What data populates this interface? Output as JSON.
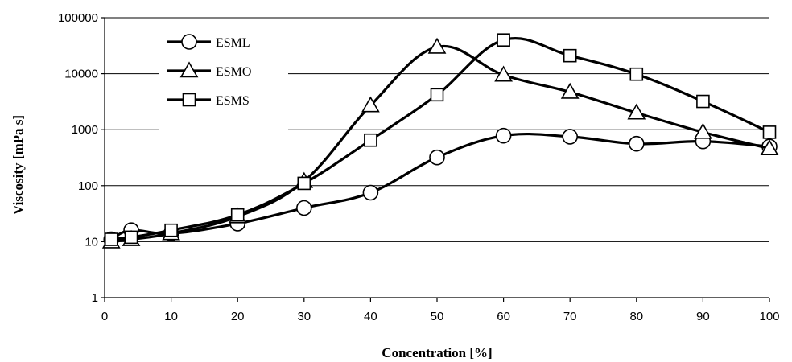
{
  "chart_data": {
    "type": "line",
    "title": "",
    "xlabel": "Concentration [%]",
    "ylabel": "Viscosity [mPa s]",
    "xlim": [
      0,
      100
    ],
    "ylim": [
      1,
      100000
    ],
    "yscale": "log",
    "x_ticks": [
      0,
      10,
      20,
      30,
      40,
      50,
      60,
      70,
      80,
      90,
      100
    ],
    "y_ticks": [
      1,
      10,
      100,
      1000,
      10000,
      100000
    ],
    "x_tick_labels": [
      "0",
      "10",
      "20",
      "30",
      "40",
      "50",
      "60",
      "70",
      "80",
      "90",
      "100"
    ],
    "y_tick_labels": [
      "1",
      "10",
      "100",
      "1000",
      "10000",
      "100000"
    ],
    "grid": "horizontal major lines",
    "legend": "top-left",
    "series": [
      {
        "name": "ESML",
        "marker": "circle",
        "x": [
          1,
          4,
          10,
          20,
          30,
          40,
          50,
          60,
          70,
          80,
          90,
          100
        ],
        "y": [
          11,
          16,
          14,
          21,
          40,
          75,
          320,
          780,
          750,
          560,
          620,
          500
        ]
      },
      {
        "name": "ESMO",
        "marker": "triangle",
        "x": [
          1,
          4,
          10,
          20,
          30,
          40,
          50,
          60,
          70,
          80,
          90,
          100
        ],
        "y": [
          10,
          11,
          14,
          28,
          120,
          2700,
          30000,
          9500,
          4700,
          2000,
          900,
          460
        ]
      },
      {
        "name": "ESMS",
        "marker": "square",
        "x": [
          1,
          4,
          10,
          20,
          30,
          40,
          50,
          60,
          70,
          80,
          90,
          100
        ],
        "y": [
          11,
          12,
          16,
          30,
          110,
          650,
          4200,
          40000,
          21000,
          9800,
          3200,
          900
        ]
      }
    ]
  }
}
